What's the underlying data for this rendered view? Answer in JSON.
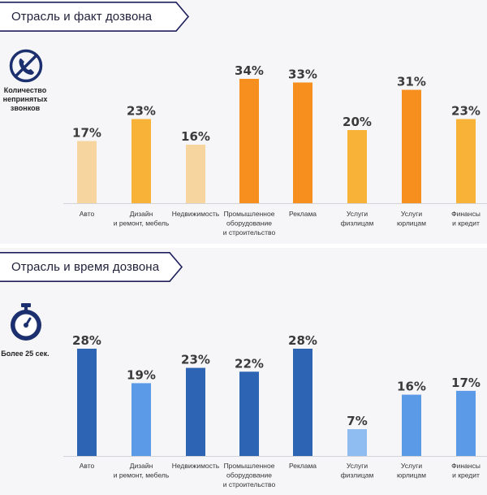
{
  "chart_data": [
    {
      "type": "bar",
      "title": "Отрасль и факт дозвона",
      "side_label": "Количество непринятых звонков",
      "icon": "phone-crossed-icon",
      "unit": "%",
      "categories": [
        [
          "Авто"
        ],
        [
          "Дизайн",
          "и ремонт, мебель"
        ],
        [
          "Недвижимость"
        ],
        [
          "Промышленное",
          "оборудование",
          "и строительство"
        ],
        [
          "Реклама"
        ],
        [
          "Услуги",
          "физлицам"
        ],
        [
          "Услуги",
          "юрлицам"
        ],
        [
          "Финансы",
          "и кредит"
        ]
      ],
      "values": [
        17,
        23,
        16,
        34,
        33,
        20,
        31,
        23
      ],
      "value_labels": [
        "17%",
        "23%",
        "16%",
        "34%",
        "33%",
        "20%",
        "31%",
        "23%"
      ],
      "ylim": [
        0,
        34
      ],
      "colors": [
        "#f6d69e",
        "#f7b237",
        "#f6d69e",
        "#f68f1e",
        "#f68f1e",
        "#f7b237",
        "#f68f1e",
        "#f7b237"
      ]
    },
    {
      "type": "bar",
      "title": "Отрасль и время дозвона",
      "side_label": "Более 25 сек.",
      "icon": "stopwatch-icon",
      "unit": "%",
      "categories": [
        [
          "Авто"
        ],
        [
          "Дизайн",
          "и ремонт, мебель"
        ],
        [
          "Недвижимость"
        ],
        [
          "Промышленное",
          "оборудование",
          "и строительство"
        ],
        [
          "Реклама"
        ],
        [
          "Услуги",
          "физлицам"
        ],
        [
          "Услуги",
          "юрлицам"
        ],
        [
          "Финансы",
          "и кредит"
        ]
      ],
      "values": [
        28,
        19,
        23,
        22,
        28,
        7,
        16,
        17
      ],
      "value_labels": [
        "28%",
        "19%",
        "23%",
        "22%",
        "28%",
        "7%",
        "16%",
        "17%"
      ],
      "ylim": [
        0,
        28
      ],
      "colors": [
        "#2e64b4",
        "#5a9ae6",
        "#2e64b4",
        "#2e64b4",
        "#2e64b4",
        "#8fbdf2",
        "#5a9ae6",
        "#5a9ae6"
      ]
    }
  ],
  "colors": {
    "banner_border": "#1f1f5e",
    "banner_text": "#1f1f3a",
    "icon": "#1c2f6e"
  }
}
